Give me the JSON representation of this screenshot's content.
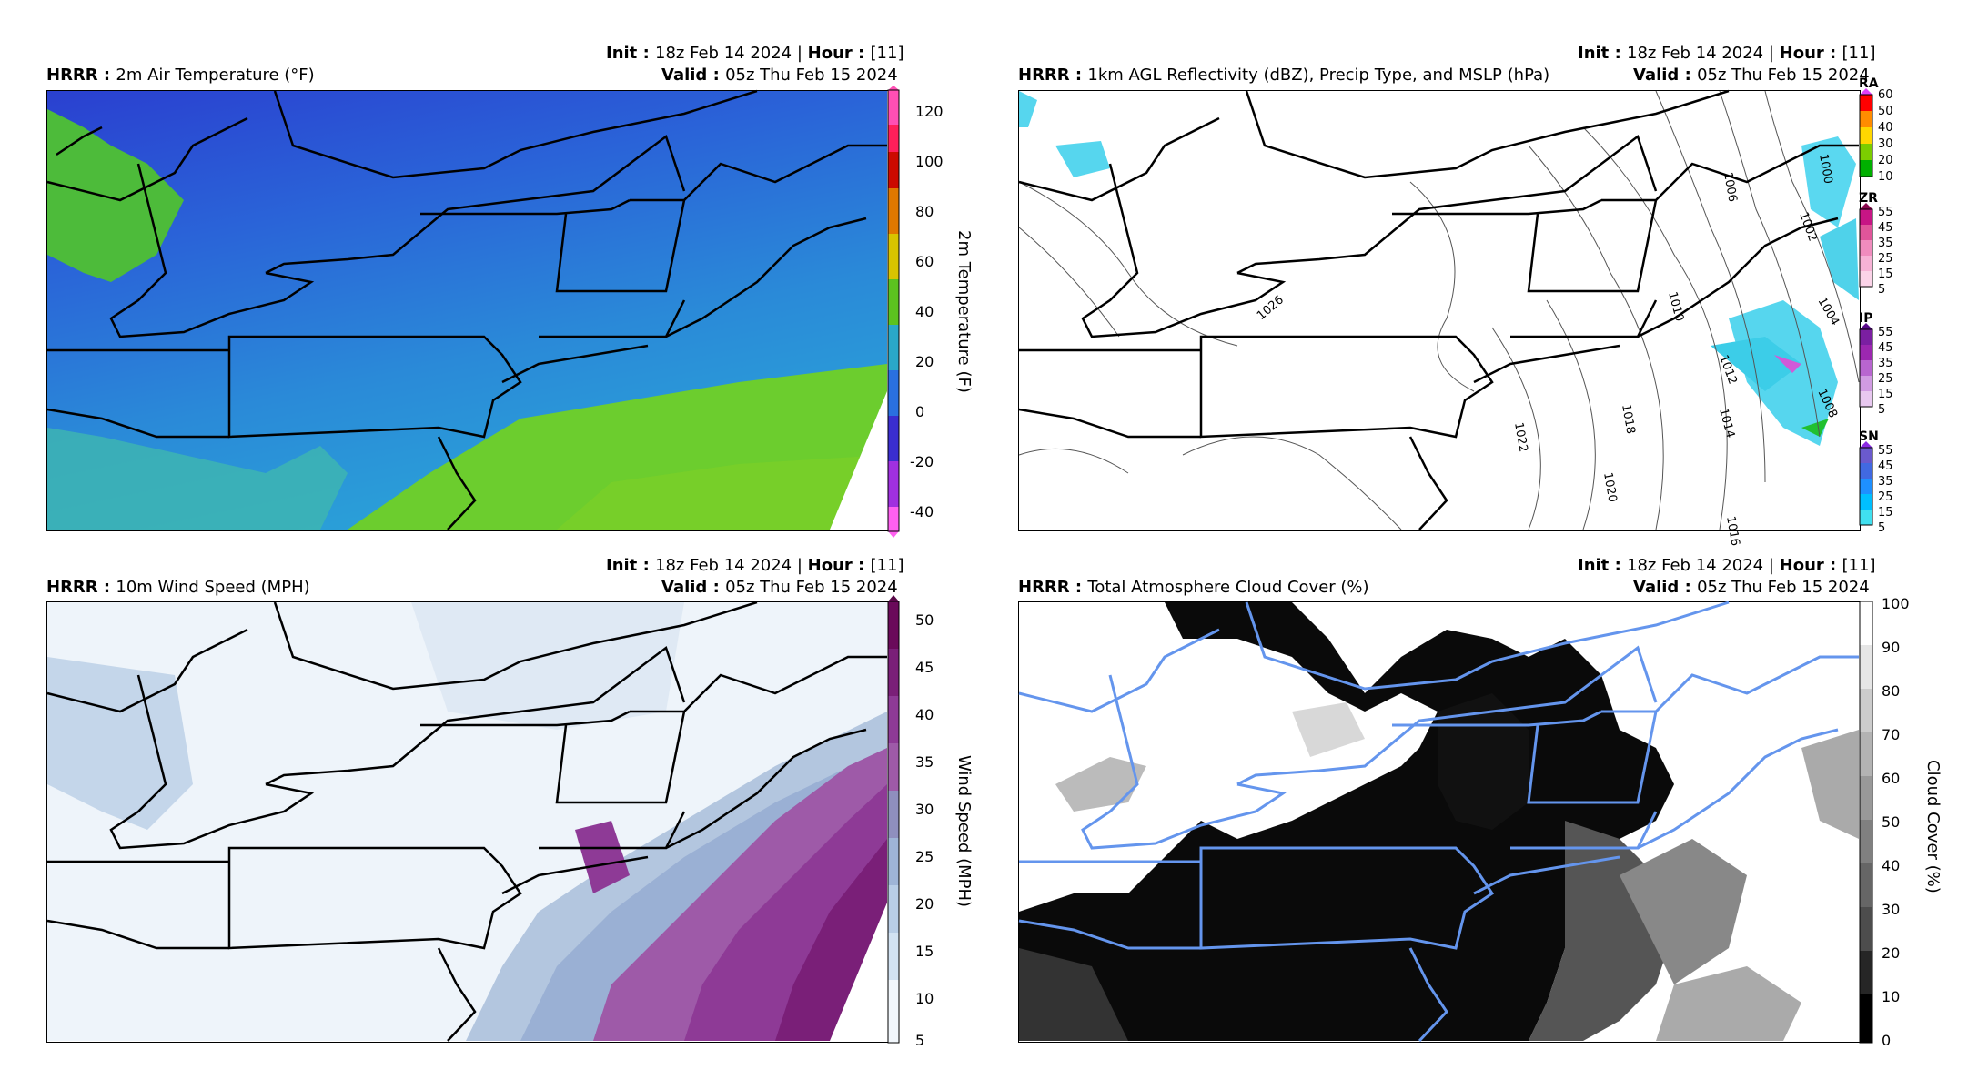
{
  "panels": [
    {
      "id": "temp",
      "model": "HRRR",
      "title": "2m Air Temperature (°F)",
      "init_label": "Init",
      "init_value": "18z Feb 14 2024",
      "hour_label": "Hour",
      "hour_value": "[11]",
      "valid_label": "Valid",
      "valid_value": "05z Thu Feb 15 2024",
      "colorbar_label": "2m Temperature (F)",
      "colorbar_ticks": [
        "120",
        "100",
        "80",
        "60",
        "40",
        "20",
        "0",
        "-20",
        "-40"
      ]
    },
    {
      "id": "refl",
      "model": "HRRR",
      "title": "1km AGL Reflectivity (dBZ), Precip Type, and MSLP (hPa)",
      "init_label": "Init",
      "init_value": "18z Feb 14 2024",
      "hour_label": "Hour",
      "hour_value": "[11]",
      "valid_label": "Valid",
      "valid_value": "05z Thu Feb 15 2024",
      "ptypes": [
        {
          "name": "RA",
          "ticks": [
            "60",
            "50",
            "40",
            "30",
            "20",
            "10"
          ],
          "colors": [
            "#e040fb",
            "#ff0000",
            "#ff8c00",
            "#ffd700",
            "#7ccd00",
            "#00b000",
            "#008000"
          ]
        },
        {
          "name": "ZR",
          "ticks": [
            "55",
            "45",
            "35",
            "25",
            "15",
            "5"
          ],
          "colors": [
            "#8b0a50",
            "#c71585",
            "#e0559a",
            "#f08cbe",
            "#f7b2d6",
            "#fbd3e8"
          ]
        },
        {
          "name": "IP",
          "ticks": [
            "55",
            "45",
            "35",
            "25",
            "15",
            "5"
          ],
          "colors": [
            "#5a0a8b",
            "#7b1fa2",
            "#9c27b0",
            "#b865d0",
            "#d19be3",
            "#e8c8f0"
          ]
        },
        {
          "name": "SN",
          "ticks": [
            "55",
            "45",
            "35",
            "25",
            "15",
            "5"
          ],
          "colors": [
            "#8a2be2",
            "#6a5acd",
            "#4169e1",
            "#1e90ff",
            "#00bfff",
            "#40e0f0"
          ]
        }
      ],
      "isobar_labels": [
        "1000",
        "1006",
        "1002",
        "1004",
        "1010",
        "1008",
        "1012",
        "1014",
        "1018",
        "1022",
        "1020",
        "1016",
        "1026"
      ]
    },
    {
      "id": "wind",
      "model": "HRRR",
      "title": "10m Wind Speed (MPH)",
      "init_label": "Init",
      "init_value": "18z Feb 14 2024",
      "hour_label": "Hour",
      "hour_value": "[11]",
      "valid_label": "Valid",
      "valid_value": "05z Thu Feb 15 2024",
      "colorbar_label": "Wind Speed (MPH)",
      "colorbar_ticks": [
        "50",
        "45",
        "40",
        "35",
        "30",
        "25",
        "20",
        "15",
        "10",
        "5"
      ]
    },
    {
      "id": "cloud",
      "model": "HRRR",
      "title": "Total Atmosphere Cloud Cover (%)",
      "init_label": "Init",
      "init_value": "18z Feb 14 2024",
      "hour_label": "Hour",
      "hour_value": "[11]",
      "valid_label": "Valid",
      "valid_value": "05z Thu Feb 15 2024",
      "colorbar_label": "Cloud Cover (%)",
      "colorbar_ticks": [
        "100",
        "90",
        "80",
        "70",
        "60",
        "50",
        "40",
        "30",
        "20",
        "10",
        "0"
      ]
    }
  ],
  "colors": {
    "temp_scale": [
      "#ff4fb4",
      "#ff1f5a",
      "#d40000",
      "#e86a00",
      "#d8b800",
      "#7ac61a",
      "#2fbf3c",
      "#2aa0d8",
      "#2a78e0",
      "#2a40d0",
      "#4a1ec8",
      "#a02ad8",
      "#ff50e0"
    ],
    "wind_scale": [
      "#6a0a5a",
      "#7a1f78",
      "#8e3a96",
      "#9e5aa8",
      "#8f8fbe",
      "#9eb4d6",
      "#b8cde6",
      "#d2e2f2",
      "#e4eef8",
      "#f2f7fc"
    ],
    "cloud_scale": [
      "#ffffff",
      "#e6e6e6",
      "#cccccc",
      "#b3b3b3",
      "#999999",
      "#808080",
      "#666666",
      "#4d4d4d",
      "#333333",
      "#1a1a1a",
      "#000000"
    ],
    "state_lines": "#000000",
    "cloud_state_lines": "#6495ed"
  }
}
